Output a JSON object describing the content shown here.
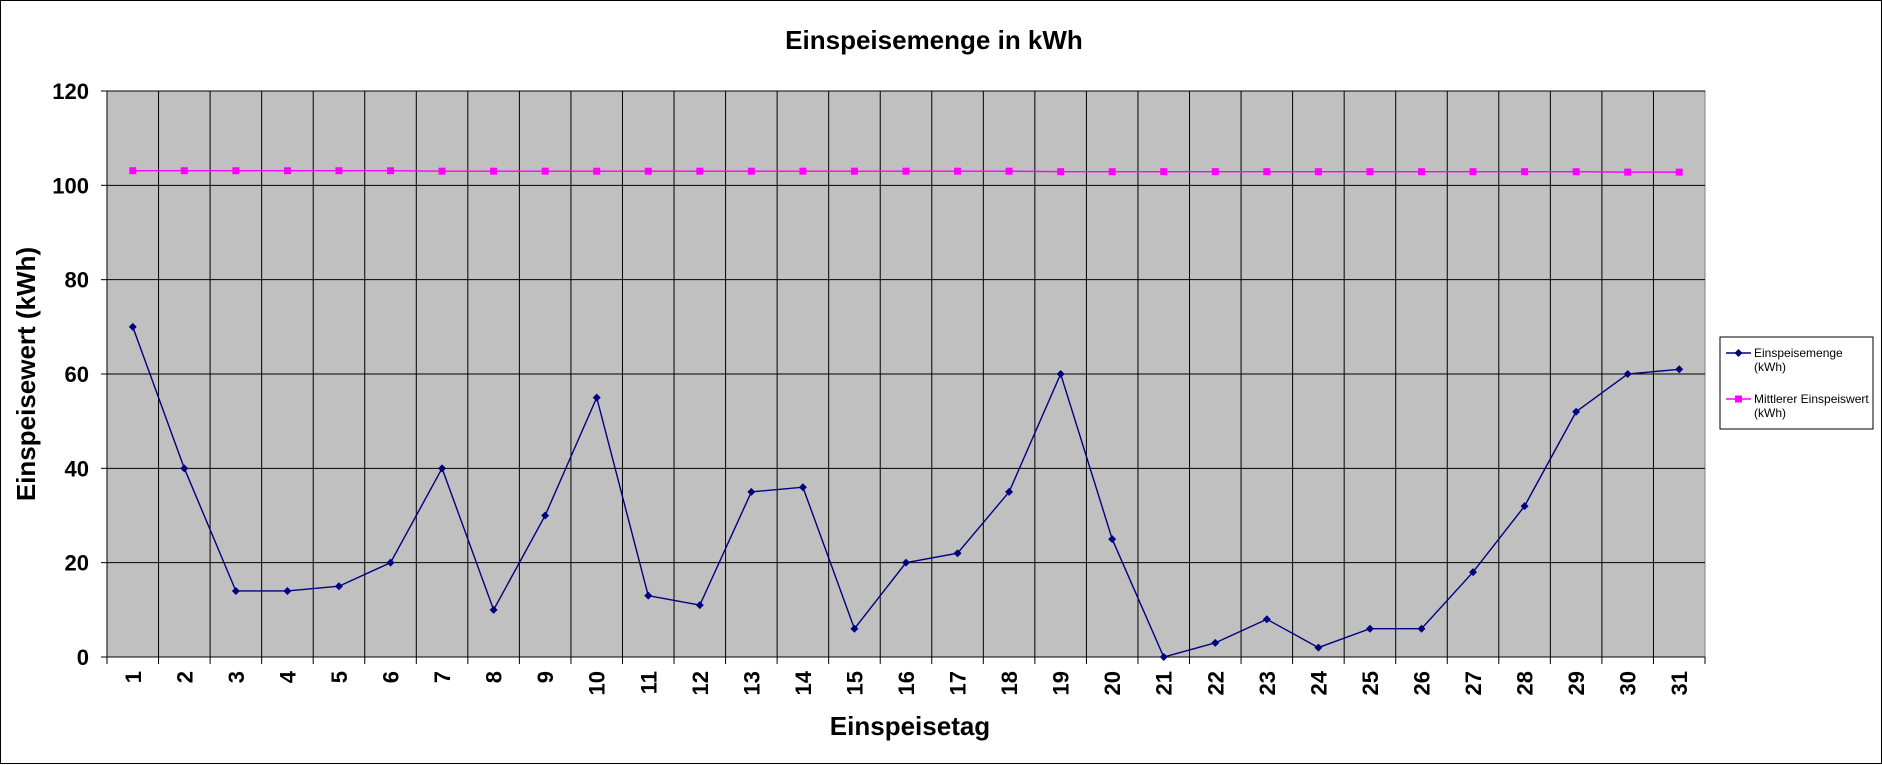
{
  "chart_data": {
    "type": "line",
    "title": "Einspeisemenge in kWh",
    "xlabel": "Einspeisetag",
    "ylabel": "Einspeisewert  (kWh)",
    "ylim": [
      0,
      120
    ],
    "yticks": [
      0,
      20,
      40,
      60,
      80,
      100,
      120
    ],
    "grid": true,
    "legend_position": "right",
    "background_color": "#c0c0c0",
    "categories": [
      "1",
      "2",
      "3",
      "4",
      "5",
      "6",
      "7",
      "8",
      "9",
      "10",
      "11",
      "12",
      "13",
      "14",
      "15",
      "16",
      "17",
      "18",
      "19",
      "20",
      "21",
      "22",
      "23",
      "24",
      "25",
      "26",
      "27",
      "28",
      "29",
      "30",
      "31"
    ],
    "series": [
      {
        "name": "Einspeisemenge (kWh)",
        "legend_lines": [
          "Einspeisemenge",
          "(kWh)"
        ],
        "color": "#000080",
        "marker": "diamond",
        "values": [
          70,
          40,
          14,
          14,
          15,
          20,
          40,
          10,
          30,
          55,
          13,
          11,
          35,
          36,
          6,
          20,
          22,
          35,
          60,
          25,
          0,
          3,
          8,
          2,
          6,
          6,
          18,
          32,
          52,
          60,
          61
        ]
      },
      {
        "name": "Mittlerer Einspeiswert (kWh)",
        "legend_lines": [
          "Mittlerer Einspeiswert",
          "(kWh)"
        ],
        "color": "#ff00ff",
        "marker": "square",
        "values": [
          103.1,
          103.1,
          103.1,
          103.1,
          103.1,
          103.1,
          103.0,
          103.0,
          103.0,
          103.0,
          103.0,
          103.0,
          103.0,
          103.0,
          103.0,
          103.0,
          103.0,
          103.0,
          102.9,
          102.9,
          102.9,
          102.9,
          102.9,
          102.9,
          102.9,
          102.9,
          102.9,
          102.9,
          102.9,
          102.8,
          102.8
        ]
      }
    ]
  }
}
